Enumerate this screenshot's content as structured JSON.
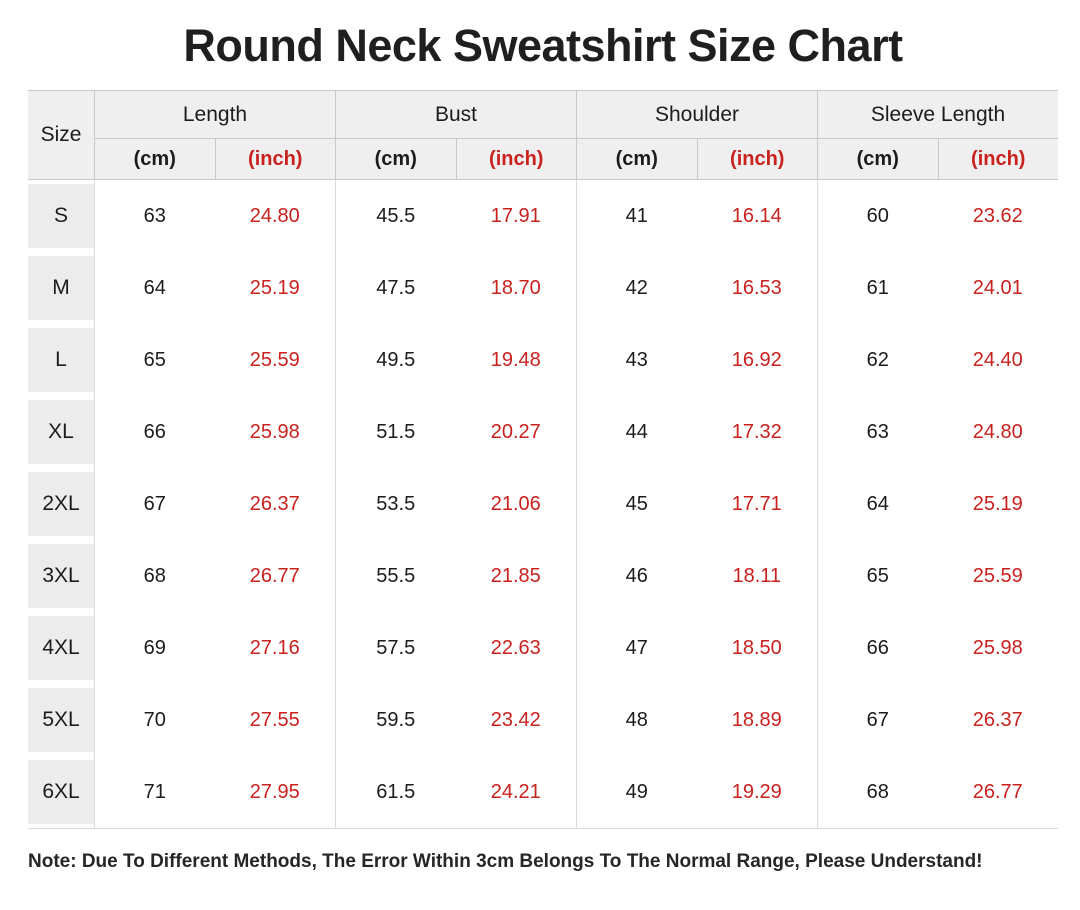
{
  "title": "Round Neck Sweatshirt Size Chart",
  "note": "Note: Due To Different Methods, The Error Within 3cm Belongs To The Normal Range, Please Understand!",
  "colors": {
    "accent_red": "#c9211e",
    "header_bg": "#efefef",
    "size_cell_bg": "#ececec",
    "border": "#c8c8c8",
    "border_light": "#dcdcdc",
    "text": "#1c1c1c"
  },
  "table": {
    "size_header": "Size",
    "unit_cm": "(cm)",
    "unit_inch": "(inch)",
    "groups": [
      {
        "label": "Length"
      },
      {
        "label": "Bust"
      },
      {
        "label": "Shoulder"
      },
      {
        "label": "Sleeve Length"
      }
    ],
    "rows": [
      {
        "size": "S",
        "values": [
          "63",
          "24.80",
          "45.5",
          "17.91",
          "41",
          "16.14",
          "60",
          "23.62"
        ]
      },
      {
        "size": "M",
        "values": [
          "64",
          "25.19",
          "47.5",
          "18.70",
          "42",
          "16.53",
          "61",
          "24.01"
        ]
      },
      {
        "size": "L",
        "values": [
          "65",
          "25.59",
          "49.5",
          "19.48",
          "43",
          "16.92",
          "62",
          "24.40"
        ]
      },
      {
        "size": "XL",
        "values": [
          "66",
          "25.98",
          "51.5",
          "20.27",
          "44",
          "17.32",
          "63",
          "24.80"
        ]
      },
      {
        "size": "2XL",
        "values": [
          "67",
          "26.37",
          "53.5",
          "21.06",
          "45",
          "17.71",
          "64",
          "25.19"
        ]
      },
      {
        "size": "3XL",
        "values": [
          "68",
          "26.77",
          "55.5",
          "21.85",
          "46",
          "18.11",
          "65",
          "25.59"
        ]
      },
      {
        "size": "4XL",
        "values": [
          "69",
          "27.16",
          "57.5",
          "22.63",
          "47",
          "18.50",
          "66",
          "25.98"
        ]
      },
      {
        "size": "5XL",
        "values": [
          "70",
          "27.55",
          "59.5",
          "23.42",
          "48",
          "18.89",
          "67",
          "26.37"
        ]
      },
      {
        "size": "6XL",
        "values": [
          "71",
          "27.95",
          "61.5",
          "24.21",
          "49",
          "19.29",
          "68",
          "26.77"
        ]
      }
    ]
  },
  "chart_data": {
    "type": "table",
    "title": "Round Neck Sweatshirt Size Chart",
    "columns": [
      "Size",
      "Length (cm)",
      "Length (inch)",
      "Bust (cm)",
      "Bust (inch)",
      "Shoulder (cm)",
      "Shoulder (inch)",
      "Sleeve Length (cm)",
      "Sleeve Length (inch)"
    ],
    "rows": [
      [
        "S",
        63,
        24.8,
        45.5,
        17.91,
        41,
        16.14,
        60,
        23.62
      ],
      [
        "M",
        64,
        25.19,
        47.5,
        18.7,
        42,
        16.53,
        61,
        24.01
      ],
      [
        "L",
        65,
        25.59,
        49.5,
        19.48,
        43,
        16.92,
        62,
        24.4
      ],
      [
        "XL",
        66,
        25.98,
        51.5,
        20.27,
        44,
        17.32,
        63,
        24.8
      ],
      [
        "2XL",
        67,
        26.37,
        53.5,
        21.06,
        45,
        17.71,
        64,
        25.19
      ],
      [
        "3XL",
        68,
        26.77,
        55.5,
        21.85,
        46,
        18.11,
        65,
        25.59
      ],
      [
        "4XL",
        69,
        27.16,
        57.5,
        22.63,
        47,
        18.5,
        66,
        25.98
      ],
      [
        "5XL",
        70,
        27.55,
        59.5,
        23.42,
        48,
        18.89,
        67,
        26.37
      ],
      [
        "6XL",
        71,
        27.95,
        61.5,
        24.21,
        49,
        19.29,
        68,
        26.77
      ]
    ],
    "note": "Note: Due To Different Methods, The Error Within 3cm Belongs To The Normal Range, Please Understand!"
  }
}
